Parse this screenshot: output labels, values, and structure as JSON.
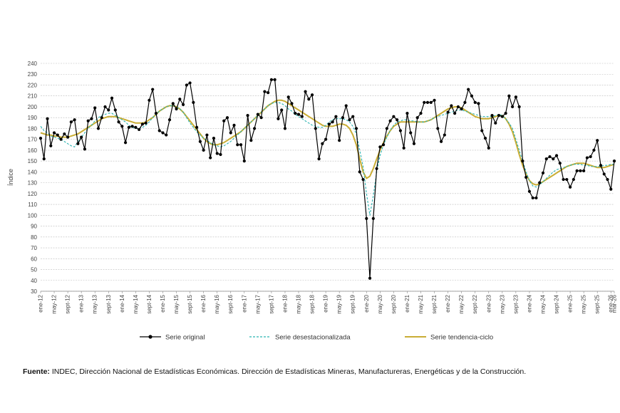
{
  "source": {
    "prefix": "Fuente:",
    "text": " INDEC, Dirección Nacional de Estadísticas Económicas. Dirección de Estadísticas Mineras, Manufactureras, Energéticas y de la Construcción."
  },
  "chart_data": {
    "type": "line",
    "title": "",
    "ylabel": "Índice",
    "xlabel": "",
    "ylim": [
      30,
      240
    ],
    "yticks": [
      30,
      40,
      50,
      60,
      70,
      80,
      90,
      100,
      110,
      120,
      130,
      140,
      150,
      160,
      170,
      180,
      190,
      200,
      210,
      220,
      230,
      240
    ],
    "grid": "horizontal-dashed",
    "legend_position": "bottom",
    "start_month": "ene-12",
    "x_tick_labels": [
      "ene-12",
      "may-12",
      "sept-12",
      "ene-13",
      "may-13",
      "sept-13",
      "ene-14",
      "may-14",
      "sept-14",
      "ene-15",
      "may-15",
      "sept-15",
      "ene-16",
      "may-16",
      "sept-16",
      "ene-17",
      "may-17",
      "sept-17",
      "ene-18",
      "may-18",
      "sept-18",
      "ene-19",
      "may-19",
      "sept-19",
      "ene-20",
      "may-20",
      "sept-20",
      "ene-21",
      "may-21",
      "sept-21",
      "ene-22",
      "may-22",
      "sept-22",
      "ene-23",
      "may-23",
      "sept-23",
      "ene-24",
      "may-24",
      "sept-24",
      "ene-25",
      "may-25",
      "sept-25",
      "ene-26",
      "mar-26"
    ],
    "colors": {
      "original": "#000000",
      "desest": "#2bb3b1",
      "tendencia": "#c9ad35"
    },
    "series": [
      {
        "name": "Serie original",
        "key": "original",
        "values": [
          171,
          152,
          189,
          164,
          176,
          174,
          170,
          175,
          172,
          186,
          188,
          166,
          172,
          161,
          187,
          189,
          199,
          180,
          190,
          200,
          197,
          208,
          197,
          186,
          182,
          167,
          181,
          182,
          181,
          179,
          184,
          185,
          206,
          216,
          194,
          178,
          176,
          174,
          188,
          203,
          198,
          207,
          202,
          220,
          222,
          204,
          181,
          168,
          160,
          174,
          153,
          171,
          157,
          156,
          187,
          190,
          176,
          183,
          165,
          165,
          150,
          192,
          169,
          180,
          193,
          190,
          214,
          213,
          225,
          225,
          189,
          197,
          180,
          209,
          203,
          194,
          193,
          191,
          214,
          207,
          211,
          180,
          152,
          166,
          170,
          184,
          186,
          191,
          169,
          190,
          201,
          188,
          191,
          180,
          140,
          133,
          97,
          42,
          97,
          143,
          163,
          165,
          180,
          187,
          191,
          188,
          178,
          162,
          194,
          176,
          166,
          190,
          194,
          204,
          204,
          204,
          206,
          180,
          168,
          174,
          195,
          201,
          194,
          200,
          198,
          204,
          216,
          210,
          204,
          203,
          178,
          171,
          162,
          192,
          185,
          192,
          191,
          194,
          210,
          200,
          209,
          200,
          150,
          135,
          122,
          116,
          116,
          130,
          139,
          152,
          154,
          152,
          155,
          148,
          133,
          133,
          126,
          133,
          141,
          141,
          141,
          153,
          154,
          160,
          169,
          146,
          138,
          133,
          124,
          150
        ]
      },
      {
        "name": "Serie desestacionalizada",
        "key": "desest",
        "values": [
          182,
          178,
          176,
          173,
          172,
          171,
          170,
          168,
          166,
          164,
          163,
          168,
          172,
          176,
          180,
          183,
          187,
          190,
          192,
          193,
          194,
          194,
          192,
          190,
          188,
          186,
          183,
          181,
          180,
          180,
          181,
          183,
          186,
          190,
          193,
          196,
          198,
          200,
          201,
          201,
          200,
          198,
          195,
          190,
          185,
          181,
          177,
          174,
          171,
          169,
          167,
          165,
          164,
          163,
          164,
          166,
          168,
          171,
          174,
          177,
          180,
          183,
          186,
          189,
          192,
          195,
          198,
          201,
          203,
          204,
          204,
          203,
          201,
          198,
          196,
          193,
          191,
          189,
          187,
          185,
          183,
          182,
          181,
          181,
          183,
          186,
          188,
          189,
          189,
          189,
          188,
          186,
          182,
          175,
          160,
          145,
          120,
          100,
          118,
          140,
          155,
          165,
          172,
          178,
          183,
          186,
          187,
          188,
          188,
          187,
          187,
          186,
          186,
          186,
          187,
          188,
          190,
          191,
          192,
          193,
          194,
          195,
          196,
          197,
          197,
          196,
          195,
          194,
          193,
          192,
          191,
          191,
          191,
          191,
          192,
          193,
          192,
          189,
          185,
          180,
          170,
          160,
          150,
          140,
          132,
          127,
          126,
          128,
          131,
          134,
          137,
          140,
          142,
          143,
          144,
          145,
          146,
          147,
          147,
          147,
          146,
          146,
          145,
          145,
          145,
          145,
          146,
          146,
          147,
          147
        ]
      },
      {
        "name": "Serie tendencia-ciclo",
        "key": "tendencia",
        "values": [
          176,
          175,
          174,
          174,
          173,
          173,
          172,
          172,
          172,
          173,
          174,
          175,
          177,
          179,
          181,
          183,
          185,
          187,
          189,
          190,
          191,
          191,
          191,
          190,
          189,
          188,
          187,
          186,
          185,
          185,
          185,
          186,
          188,
          190,
          193,
          196,
          198,
          200,
          201,
          201,
          200,
          198,
          195,
          191,
          187,
          183,
          179,
          175,
          171,
          168,
          166,
          165,
          165,
          166,
          167,
          169,
          171,
          173,
          175,
          177,
          180,
          183,
          186,
          189,
          192,
          195,
          198,
          201,
          203,
          205,
          206,
          206,
          205,
          203,
          201,
          199,
          197,
          195,
          193,
          191,
          189,
          187,
          185,
          183,
          182,
          182,
          182,
          183,
          184,
          184,
          183,
          180,
          174,
          165,
          152,
          140,
          134,
          136,
          143,
          152,
          160,
          167,
          173,
          178,
          182,
          184,
          186,
          186,
          186,
          186,
          186,
          186,
          186,
          186,
          187,
          188,
          190,
          192,
          194,
          196,
          198,
          199,
          200,
          200,
          199,
          197,
          195,
          193,
          191,
          190,
          189,
          189,
          189,
          190,
          191,
          192,
          192,
          189,
          184,
          177,
          167,
          156,
          146,
          138,
          132,
          129,
          128,
          129,
          131,
          133,
          135,
          137,
          139,
          141,
          143,
          145,
          146,
          147,
          148,
          148,
          148,
          147,
          146,
          145,
          144,
          144,
          144,
          145,
          146,
          147
        ]
      }
    ]
  }
}
